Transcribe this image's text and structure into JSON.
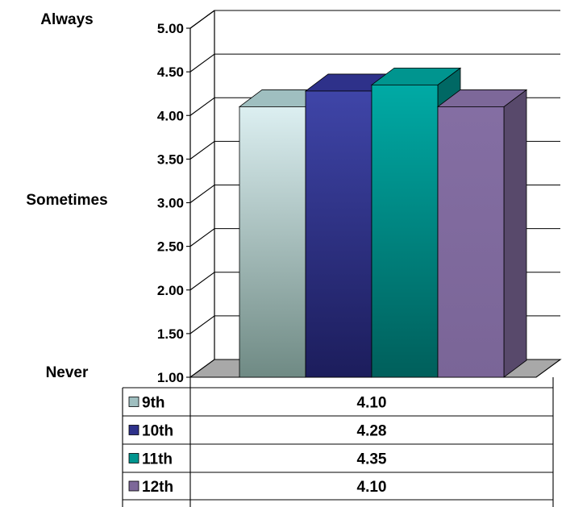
{
  "chart_data": {
    "type": "bar",
    "title": "",
    "xlabel": "",
    "ylabel": "",
    "ylim": [
      1.0,
      5.0
    ],
    "y_ticks": [
      "1.00",
      "1.50",
      "2.00",
      "2.50",
      "3.00",
      "3.50",
      "4.00",
      "4.50",
      "5.00"
    ],
    "y_tick_values": [
      1.0,
      1.5,
      2.0,
      2.5,
      3.0,
      3.5,
      4.0,
      4.5,
      5.0
    ],
    "scale_labels": [
      {
        "text": "Always",
        "value": 5.0
      },
      {
        "text": "Sometimes",
        "value": 3.0
      },
      {
        "text": "Never",
        "value": 1.0
      }
    ],
    "grid": true,
    "three_d": true,
    "legend": "data-table-below",
    "categories": [
      "9th",
      "10th",
      "11th",
      "12th"
    ],
    "values": [
      4.1,
      4.28,
      4.35,
      4.1
    ],
    "value_labels": [
      "4.10",
      "4.28",
      "4.35",
      "4.10"
    ],
    "colors": [
      "#9fbfc0",
      "#2e318a",
      "#00958f",
      "#7d6899"
    ]
  }
}
